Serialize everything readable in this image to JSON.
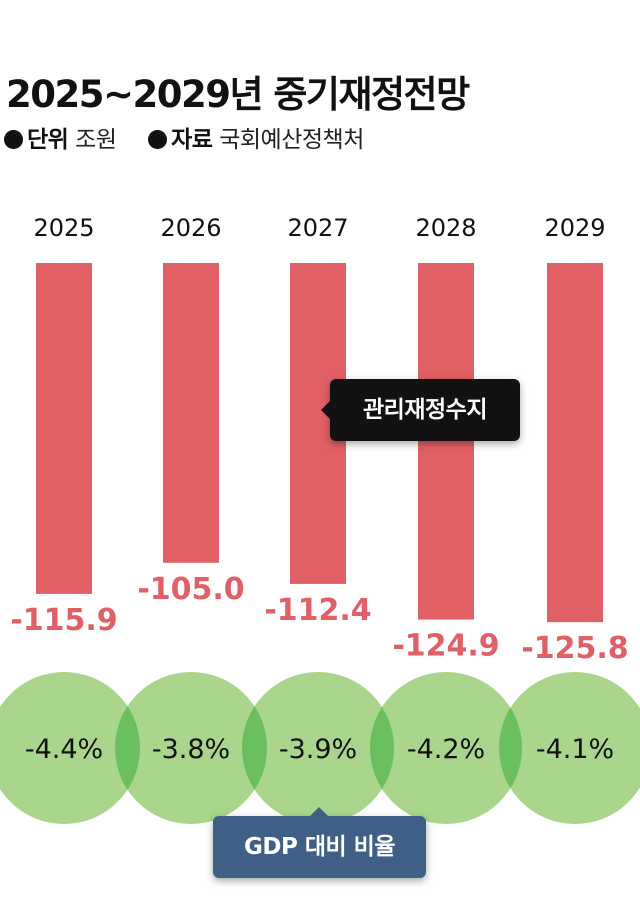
{
  "header": {
    "title": "2025~2029년 중기재정전망",
    "unit_label": "단위",
    "unit_value": "조원",
    "source_label": "자료",
    "source_value": "국회예산정책처"
  },
  "chart_data": {
    "type": "bar",
    "categories": [
      "2025",
      "2026",
      "2027",
      "2028",
      "2029"
    ],
    "series": [
      {
        "name": "관리재정수지",
        "values": [
          -115.9,
          -105.0,
          -112.4,
          -124.9,
          -125.8
        ],
        "color": "#e06065"
      },
      {
        "name": "GDP 대비 비율",
        "values": [
          "-4.4%",
          "-3.8%",
          "-3.9%",
          "-4.2%",
          "-4.1%"
        ],
        "color": "#a9d58d"
      }
    ],
    "value_labels": [
      "-115.9",
      "-105.0",
      "-112.4",
      "-124.9",
      "-125.8"
    ],
    "ylim": [
      -130,
      0
    ],
    "grid": false,
    "legend": "inline"
  },
  "annotations": {
    "bar_series_label": "관리재정수지",
    "ratio_series_label": "GDP 대비 비율"
  },
  "colors": {
    "bar": "#e06065",
    "bar_label": "#e06065",
    "circle": "#a9d58d",
    "circle_overlap": "#6cbf5f",
    "tooltip_bg": "#111111",
    "gdp_label_bg": "#3f5f86"
  }
}
